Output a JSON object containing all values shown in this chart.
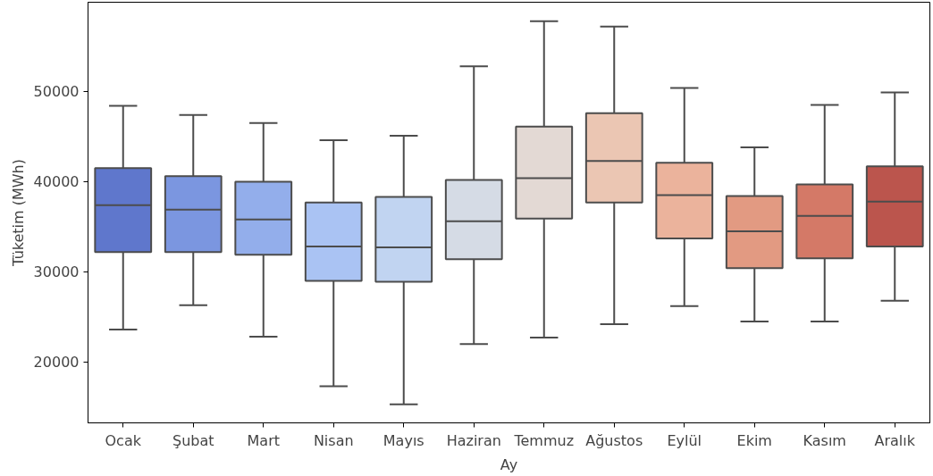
{
  "chart_data": {
    "type": "box",
    "xlabel": "Ay",
    "ylabel": "Tüketim (MWh)",
    "categories": [
      "Ocak",
      "Şubat",
      "Mart",
      "Nisan",
      "Mayıs",
      "Haziran",
      "Temmuz",
      "Ağustos",
      "Eylül",
      "Ekim",
      "Kasım",
      "Aralık"
    ],
    "colors": [
      "#5f77cc",
      "#7b96e0",
      "#93aeeb",
      "#aac3f3",
      "#c1d4f1",
      "#d5dbe5",
      "#e3d9d4",
      "#ebc6b3",
      "#ebb39c",
      "#e29a82",
      "#d47967",
      "#bb554d"
    ],
    "boxes": [
      {
        "low": 23600,
        "q1": 32200,
        "median": 37400,
        "q3": 41500,
        "high": 48400
      },
      {
        "low": 26300,
        "q1": 32200,
        "median": 36900,
        "q3": 40600,
        "high": 47400
      },
      {
        "low": 22800,
        "q1": 31900,
        "median": 35800,
        "q3": 40000,
        "high": 46500
      },
      {
        "low": 17300,
        "q1": 29000,
        "median": 32800,
        "q3": 37700,
        "high": 44600
      },
      {
        "low": 15300,
        "q1": 28900,
        "median": 32700,
        "q3": 38300,
        "high": 45100
      },
      {
        "low": 22000,
        "q1": 31400,
        "median": 35600,
        "q3": 40200,
        "high": 52800
      },
      {
        "low": 22700,
        "q1": 35900,
        "median": 40400,
        "q3": 46100,
        "high": 57800
      },
      {
        "low": 24200,
        "q1": 37700,
        "median": 42300,
        "q3": 47600,
        "high": 57200
      },
      {
        "low": 26200,
        "q1": 33700,
        "median": 38500,
        "q3": 42100,
        "high": 50400
      },
      {
        "low": 24500,
        "q1": 30400,
        "median": 34500,
        "q3": 38400,
        "high": 43800
      },
      {
        "low": 24500,
        "q1": 31500,
        "median": 36200,
        "q3": 39700,
        "high": 48500
      },
      {
        "low": 26800,
        "q1": 32800,
        "median": 37800,
        "q3": 41700,
        "high": 49900
      }
    ],
    "ylim": [
      13250,
      59900
    ],
    "yticks": [
      20000,
      30000,
      40000,
      50000
    ],
    "grid": false
  }
}
